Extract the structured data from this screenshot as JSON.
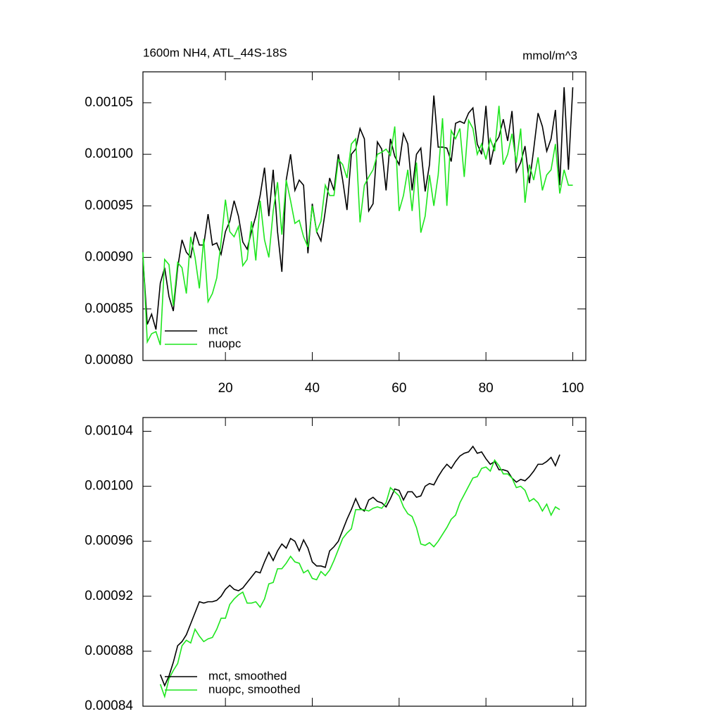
{
  "chart_data": [
    {
      "type": "line",
      "title": "1600m NH4, ATL_44S-18S",
      "units": "mmol/m^3",
      "xlim": [
        1,
        103
      ],
      "xticks": [
        20,
        40,
        60,
        80,
        100
      ],
      "x_tick_labels": true,
      "ylim": [
        0.0008,
        0.00108
      ],
      "yticks": [
        {
          "value": 0.0008,
          "label": "0.00080"
        },
        {
          "value": 0.00085,
          "label": "0.00085"
        },
        {
          "value": 0.0009,
          "label": "0.00090"
        },
        {
          "value": 0.00095,
          "label": "0.00095"
        },
        {
          "value": 0.001,
          "label": "0.00100"
        },
        {
          "value": 0.00105,
          "label": "0.00105"
        }
      ],
      "legend": "lower left",
      "x": [
        1,
        2,
        3,
        4,
        5,
        6,
        7,
        8,
        9,
        10,
        11,
        12,
        13,
        14,
        15,
        16,
        17,
        18,
        19,
        20,
        21,
        22,
        23,
        24,
        25,
        26,
        27,
        28,
        29,
        30,
        31,
        32,
        33,
        34,
        35,
        36,
        37,
        38,
        39,
        40,
        41,
        42,
        43,
        44,
        45,
        46,
        47,
        48,
        49,
        50,
        51,
        52,
        53,
        54,
        55,
        56,
        57,
        58,
        59,
        60,
        61,
        62,
        63,
        64,
        65,
        66,
        67,
        68,
        69,
        70,
        71,
        72,
        73,
        74,
        75,
        76,
        77,
        78,
        79,
        80,
        81,
        82,
        83,
        84,
        85,
        86,
        87,
        88,
        89,
        90,
        91,
        92,
        93,
        94,
        95,
        96,
        97,
        98,
        99,
        100
      ],
      "series": [
        {
          "name": "mct",
          "color": "#000000",
          "values": [
            0.0009,
            0.000835,
            0.000845,
            0.00083,
            0.000875,
            0.00089,
            0.000862,
            0.000848,
            0.00089,
            0.000917,
            0.000905,
            0.0009,
            0.000925,
            0.000912,
            0.000912,
            0.000942,
            0.000912,
            0.000914,
            0.000903,
            0.000925,
            0.000935,
            0.000955,
            0.00094,
            0.000915,
            0.000908,
            0.000925,
            0.00094,
            0.00096,
            0.000987,
            0.00094,
            0.000985,
            0.000925,
            0.000886,
            0.000975,
            0.001,
            0.000965,
            0.000975,
            0.00097,
            0.000904,
            0.000952,
            0.000925,
            0.000916,
            0.000945,
            0.000977,
            0.000965,
            0.001,
            0.000975,
            0.000946,
            0.001,
            0.001005,
            0.001025,
            0.001015,
            0.000945,
            0.000952,
            0.001012,
            0.001005,
            0.000965,
            0.001015,
            0.000998,
            0.00099,
            0.00102,
            0.00101,
            0.000965,
            0.001,
            0.001006,
            0.000964,
            0.00099,
            0.001057,
            0.001007,
            0.001007,
            0.001006,
            0.000993,
            0.00103,
            0.001032,
            0.00103,
            0.00104,
            0.001045,
            0.00101,
            0.001,
            0.001047,
            0.00099,
            0.00101,
            0.001017,
            0.001034,
            0.001013,
            0.001042,
            0.000983,
            0.000992,
            0.001008,
            0.000972,
            0.001005,
            0.00104,
            0.001027,
            0.001003,
            0.001015,
            0.001043,
            0.00097,
            0.001065,
            0.000985,
            0.001065
          ]
        },
        {
          "name": "nuopc",
          "color": "#1ee61e",
          "values": [
            0.000905,
            0.000818,
            0.000826,
            0.000828,
            0.000815,
            0.000898,
            0.000893,
            0.000853,
            0.000895,
            0.00089,
            0.000865,
            0.00092,
            0.0009,
            0.00087,
            0.000918,
            0.000857,
            0.000865,
            0.00088,
            0.000915,
            0.000956,
            0.000925,
            0.00092,
            0.00093,
            0.000892,
            0.000898,
            0.000935,
            0.000897,
            0.000955,
            0.000917,
            0.0009,
            0.000945,
            0.000973,
            0.000922,
            0.000975,
            0.000955,
            0.000933,
            0.000936,
            0.00092,
            0.00091,
            0.00095,
            0.000925,
            0.000935,
            0.00097,
            0.00096,
            0.00096,
            0.000995,
            0.00099,
            0.000977,
            0.00101,
            0.001015,
            0.000934,
            0.00097,
            0.000978,
            0.000985,
            0.001,
            0.001002,
            0.001005,
            0.000999,
            0.001027,
            0.000945,
            0.00096,
            0.000985,
            0.000945,
            0.000992,
            0.000924,
            0.00094,
            0.00098,
            0.00095,
            0.00098,
            0.001035,
            0.00095,
            0.001023,
            0.001015,
            0.001025,
            0.000978,
            0.001033,
            0.001025,
            0.001,
            0.00101,
            0.000995,
            0.001015,
            0.001003,
            0.001047,
            0.00099,
            0.001,
            0.00102,
            0.000992,
            0.001025,
            0.000953,
            0.00099,
            0.000975,
            0.000997,
            0.000965,
            0.00098,
            0.000985,
            0.00101,
            0.000962,
            0.000985,
            0.00097,
            0.00097
          ]
        }
      ]
    },
    {
      "type": "line",
      "xlim": [
        1,
        103
      ],
      "xticks": [
        20,
        40,
        60,
        80,
        100
      ],
      "x_tick_labels": false,
      "ylim": [
        0.00084,
        0.00105
      ],
      "yticks": [
        {
          "value": 0.00084,
          "label": "0.00084"
        },
        {
          "value": 0.00088,
          "label": "0.00088"
        },
        {
          "value": 0.00092,
          "label": "0.00092"
        },
        {
          "value": 0.00096,
          "label": "0.00096"
        },
        {
          "value": 0.001,
          "label": "0.00100"
        },
        {
          "value": 0.00104,
          "label": "0.00104"
        }
      ],
      "legend": "lower left",
      "x": [
        5,
        6,
        7,
        8,
        9,
        10,
        11,
        12,
        13,
        14,
        15,
        16,
        17,
        18,
        19,
        20,
        21,
        22,
        23,
        24,
        25,
        26,
        27,
        28,
        29,
        30,
        31,
        32,
        33,
        34,
        35,
        36,
        37,
        38,
        39,
        40,
        41,
        42,
        43,
        44,
        45,
        46,
        47,
        48,
        49,
        50,
        51,
        52,
        53,
        54,
        55,
        56,
        57,
        58,
        59,
        60,
        61,
        62,
        63,
        64,
        65,
        66,
        67,
        68,
        69,
        70,
        71,
        72,
        73,
        74,
        75,
        76,
        77,
        78,
        79,
        80,
        81,
        82,
        83,
        84,
        85,
        86,
        87,
        88,
        89,
        90,
        91,
        92,
        93,
        94,
        95,
        96,
        97
      ],
      "series": [
        {
          "name": "mct, smoothed",
          "color": "#000000",
          "values": [
            0.000863,
            0.000855,
            0.000862,
            0.000872,
            0.000884,
            0.000887,
            0.000892,
            0.0009,
            0.000908,
            0.000916,
            0.000915,
            0.000916,
            0.000916,
            0.000917,
            0.00092,
            0.000925,
            0.000928,
            0.000925,
            0.000924,
            0.000926,
            0.00093,
            0.000934,
            0.000938,
            0.000937,
            0.000945,
            0.000952,
            0.000946,
            0.000953,
            0.000958,
            0.000955,
            0.000962,
            0.00096,
            0.000953,
            0.000961,
            0.000955,
            0.000945,
            0.000942,
            0.000942,
            0.000941,
            0.000953,
            0.000956,
            0.00096,
            0.000968,
            0.000976,
            0.000983,
            0.000991,
            0.000984,
            0.000982,
            0.00099,
            0.000992,
            0.000989,
            0.000988,
            0.000985,
            0.000991,
            0.000998,
            0.000997,
            0.00099,
            0.000996,
            0.000996,
            0.000992,
            0.000993,
            0.001,
            0.001002,
            0.001001,
            0.001007,
            0.001012,
            0.001016,
            0.001013,
            0.001018,
            0.001022,
            0.001024,
            0.001025,
            0.001029,
            0.001024,
            0.001025,
            0.00102,
            0.001016,
            0.001018,
            0.001012,
            0.001012,
            0.001011,
            0.001006,
            0.001003,
            0.001005,
            0.001004,
            0.001007,
            0.001011,
            0.001016,
            0.001016,
            0.001018,
            0.001021,
            0.001015,
            0.001023
          ]
        },
        {
          "name": "nuopc, smoothed",
          "color": "#1ee61e",
          "values": [
            0.000856,
            0.000847,
            0.00086,
            0.000866,
            0.000871,
            0.000884,
            0.000888,
            0.000886,
            0.000896,
            0.000891,
            0.000887,
            0.000889,
            0.00089,
            0.000896,
            0.000904,
            0.000904,
            0.000914,
            0.000918,
            0.000921,
            0.000923,
            0.000915,
            0.000915,
            0.000916,
            0.000912,
            0.000918,
            0.000929,
            0.00093,
            0.00094,
            0.00094,
            0.000944,
            0.000949,
            0.000945,
            0.000944,
            0.000937,
            0.000939,
            0.000933,
            0.000932,
            0.000938,
            0.000935,
            0.000939,
            0.000946,
            0.000954,
            0.000962,
            0.000966,
            0.000969,
            0.000983,
            0.000983,
            0.000983,
            0.000982,
            0.000984,
            0.000985,
            0.000984,
            0.000988,
            0.000999,
            0.000996,
            0.000993,
            0.000985,
            0.00098,
            0.000978,
            0.00097,
            0.000958,
            0.000957,
            0.000959,
            0.000956,
            0.00096,
            0.000965,
            0.00097,
            0.000976,
            0.000979,
            0.000988,
            0.000994,
            0.001,
            0.001006,
            0.001007,
            0.001013,
            0.001014,
            0.001011,
            0.001019,
            0.001015,
            0.001009,
            0.001009,
            0.001006,
            0.000999,
            0.001,
            0.000997,
            0.000989,
            0.000991,
            0.000988,
            0.000982,
            0.000987,
            0.000979,
            0.000985,
            0.000983
          ]
        }
      ]
    }
  ]
}
